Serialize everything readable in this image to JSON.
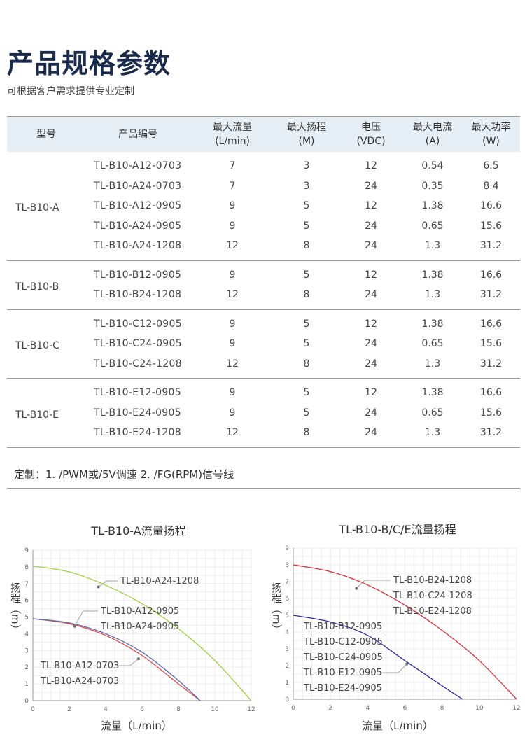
{
  "title": "产品规格参数",
  "subtitle": "可根据客户需求提供专业定制",
  "table": {
    "headers": [
      {
        "l1": "型号",
        "l2": ""
      },
      {
        "l1": "产品编号",
        "l2": ""
      },
      {
        "l1": "最大流量",
        "l2": "(L/min)"
      },
      {
        "l1": "最大扬程",
        "l2": "(M)"
      },
      {
        "l1": "电压",
        "l2": "(VDC)"
      },
      {
        "l1": "最大电流",
        "l2": "(A)"
      },
      {
        "l1": "最大功率",
        "l2": "(W)"
      }
    ],
    "groups": [
      {
        "model": "TL-B10-A",
        "rows": [
          [
            "TL-B10-A12-0703",
            "7",
            "3",
            "12",
            "0.54",
            "6.5"
          ],
          [
            "TL-B10-A24-0703",
            "7",
            "3",
            "24",
            "0.35",
            "8.4"
          ],
          [
            "TL-B10-A12-0905",
            "9",
            "5",
            "12",
            "1.38",
            "16.6"
          ],
          [
            "TL-B10-A24-0905",
            "9",
            "5",
            "24",
            "0.65",
            "15.6"
          ],
          [
            "TL-B10-A24-1208",
            "12",
            "8",
            "24",
            "1.3",
            "31.2"
          ]
        ]
      },
      {
        "model": "TL-B10-B",
        "rows": [
          [
            "TL-B10-B12-0905",
            "9",
            "5",
            "12",
            "1.38",
            "16.6"
          ],
          [
            "TL-B10-B24-1208",
            "12",
            "8",
            "24",
            "1.3",
            "31.2"
          ]
        ]
      },
      {
        "model": "TL-B10-C",
        "rows": [
          [
            "TL-B10-C12-0905",
            "9",
            "5",
            "12",
            "1.38",
            "16.6"
          ],
          [
            "TL-B10-C24-0905",
            "9",
            "5",
            "24",
            "0.65",
            "15.6"
          ],
          [
            "TL-B10-C24-1208",
            "12",
            "8",
            "24",
            "1.3",
            "31.2"
          ]
        ]
      },
      {
        "model": "TL-B10-E",
        "rows": [
          [
            "TL-B10-E12-0905",
            "9",
            "5",
            "12",
            "1.38",
            "16.6"
          ],
          [
            "TL-B10-E24-0905",
            "9",
            "5",
            "24",
            "0.65",
            "15.6"
          ],
          [
            "TL-B10-E24-1208",
            "12",
            "8",
            "24",
            "1.3",
            "31.2"
          ]
        ]
      }
    ]
  },
  "note": "定制：1. /PWM或/5V调速   2. /FG(RPM)信号线",
  "chart_data": [
    {
      "type": "line",
      "title": "TL-B10-A流量扬程",
      "xlabel": "流量（L/min）",
      "ylabel": "扬程（m）",
      "xlim": [
        0,
        12
      ],
      "ylim": [
        0,
        9
      ],
      "xticks": [
        "0",
        "2",
        "4",
        "6",
        "8",
        "10",
        "12"
      ],
      "yticks": [
        "0",
        "1",
        "2",
        "3",
        "4",
        "5",
        "6",
        "7",
        "8",
        "9"
      ],
      "grid": true,
      "series": [
        {
          "color": "#e8464c",
          "x": [
            0,
            2,
            4,
            6,
            8,
            9.2
          ],
          "y": [
            4.9,
            4.6,
            3.9,
            2.7,
            1.0,
            0
          ]
        },
        {
          "color": "#5a6aa8",
          "x": [
            0,
            2,
            4,
            6,
            8,
            9.2
          ],
          "y": [
            4.9,
            4.65,
            4.0,
            2.9,
            1.2,
            0
          ]
        },
        {
          "color": "#9bd13a",
          "x": [
            0,
            2,
            4,
            6,
            8,
            10,
            12
          ],
          "y": [
            8.05,
            7.7,
            6.9,
            5.8,
            4.3,
            2.4,
            0
          ]
        }
      ],
      "annotations": [
        {
          "text": "TL-B10-A24-1208",
          "point": [
            3.6,
            6.8
          ]
        },
        {
          "text": "TL-B10-A12-0905",
          "point": [
            2.3,
            4.45
          ]
        },
        {
          "text": "TL-B10-A24-0905",
          "point": null
        },
        {
          "text": "TL-B10-A12-0703",
          "point": [
            5.8,
            2.5
          ]
        },
        {
          "text": "TL-B10-A24-0703",
          "point": null
        }
      ]
    },
    {
      "type": "line",
      "title": "TL-B10-B/C/E流量扬程",
      "xlabel": "流量（L/min）",
      "ylabel": "扬程（m）",
      "xlim": [
        0,
        12
      ],
      "ylim": [
        0,
        9
      ],
      "xticks": [
        "0",
        "2",
        "4",
        "6",
        "8",
        "10",
        "12"
      ],
      "yticks": [
        "0",
        "1",
        "2",
        "3",
        "4",
        "5",
        "6",
        "7",
        "8",
        "9"
      ],
      "grid": true,
      "series": [
        {
          "color": "#d9303a",
          "x": [
            0,
            2,
            4,
            6,
            8,
            10,
            12
          ],
          "y": [
            8.0,
            7.6,
            6.8,
            5.6,
            4.1,
            2.3,
            0
          ]
        },
        {
          "color": "#2a2aa0",
          "x": [
            0,
            2,
            4,
            6,
            8,
            9.1
          ],
          "y": [
            5.0,
            4.6,
            3.8,
            2.3,
            0.8,
            0
          ]
        }
      ],
      "annotations": [
        {
          "text": "TL-B10-B24-1208",
          "point": [
            3.4,
            6.6
          ]
        },
        {
          "text": "TL-B10-C24-1208",
          "point": null
        },
        {
          "text": "TL-B10-E24-1208",
          "point": null
        },
        {
          "text": "TL-B10-B12-0905",
          "point": null
        },
        {
          "text": "TL-B10-C12-0905",
          "point": null
        },
        {
          "text": "TL-B10-C24-0905",
          "point": null
        },
        {
          "text": "TL-B10-E12-0905",
          "point": [
            6.1,
            2.1
          ]
        },
        {
          "text": "TL-B10-E24-0905",
          "point": null
        }
      ]
    }
  ]
}
